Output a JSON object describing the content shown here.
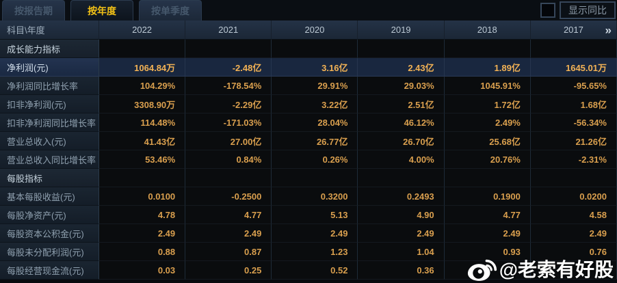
{
  "tabs": [
    {
      "label": "按报告期",
      "active": false
    },
    {
      "label": "按年度",
      "active": true
    },
    {
      "label": "按单季度",
      "active": false
    }
  ],
  "controls": {
    "show_yoy_label": "显示同比",
    "checkbox_checked": false
  },
  "table": {
    "corner_label": "科目\\年度",
    "years": [
      "2022",
      "2021",
      "2020",
      "2019",
      "2018",
      "2017"
    ],
    "more_icon": "»",
    "rows": [
      {
        "type": "section",
        "label": "成长能力指标"
      },
      {
        "type": "data",
        "highlight": true,
        "label": "净利润(元)",
        "values": [
          "1064.84万",
          "-2.48亿",
          "3.16亿",
          "2.43亿",
          "1.89亿",
          "1645.01万"
        ]
      },
      {
        "type": "data",
        "label": "净利润同比增长率",
        "values": [
          "104.29%",
          "-178.54%",
          "29.91%",
          "29.03%",
          "1045.91%",
          "-95.65%"
        ]
      },
      {
        "type": "data",
        "label": "扣非净利润(元)",
        "values": [
          "3308.90万",
          "-2.29亿",
          "3.22亿",
          "2.51亿",
          "1.72亿",
          "1.68亿"
        ]
      },
      {
        "type": "data",
        "label": "扣非净利润同比增长率",
        "values": [
          "114.48%",
          "-171.03%",
          "28.04%",
          "46.12%",
          "2.49%",
          "-56.34%"
        ]
      },
      {
        "type": "data",
        "label": "营业总收入(元)",
        "values": [
          "41.43亿",
          "27.00亿",
          "26.77亿",
          "26.70亿",
          "25.68亿",
          "21.26亿"
        ]
      },
      {
        "type": "data",
        "label": "营业总收入同比增长率",
        "values": [
          "53.46%",
          "0.84%",
          "0.26%",
          "4.00%",
          "20.76%",
          "-2.31%"
        ]
      },
      {
        "type": "section",
        "label": "每股指标"
      },
      {
        "type": "data",
        "label": "基本每股收益(元)",
        "values": [
          "0.0100",
          "-0.2500",
          "0.3200",
          "0.2493",
          "0.1900",
          "0.0200"
        ]
      },
      {
        "type": "data",
        "label": "每股净资产(元)",
        "values": [
          "4.78",
          "4.77",
          "5.13",
          "4.90",
          "4.77",
          "4.58"
        ]
      },
      {
        "type": "data",
        "label": "每股资本公积金(元)",
        "values": [
          "2.49",
          "2.49",
          "2.49",
          "2.49",
          "2.49",
          "2.49"
        ]
      },
      {
        "type": "data",
        "label": "每股未分配利润(元)",
        "values": [
          "0.88",
          "0.87",
          "1.23",
          "1.04",
          "0.93",
          "0.76"
        ]
      },
      {
        "type": "data",
        "label": "每股经营现金流(元)",
        "values": [
          "0.03",
          "0.25",
          "0.52",
          "0.36",
          "",
          ""
        ]
      }
    ]
  },
  "watermark": {
    "handle": "@老索有好股",
    "icon": "weibo-logo"
  },
  "colors": {
    "accent_gold": "#f2c116",
    "value_orange": "#d99f4e",
    "highlight_value": "#f2b255",
    "highlight_row_bg": "#19273f",
    "header_bg": "#223043",
    "label_column_bg": "#17212d",
    "page_bg": "#090b0f",
    "watermark_white": "#ffffff"
  }
}
